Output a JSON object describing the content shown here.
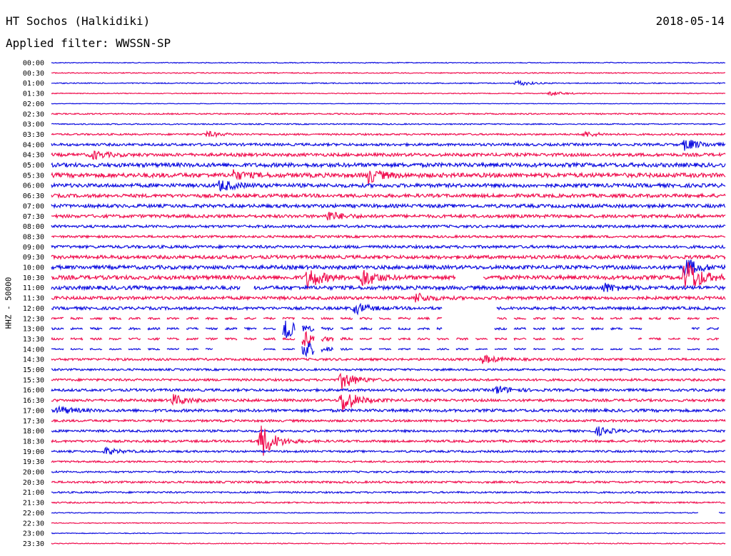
{
  "header": {
    "station": "HT Sochos (Halkidiki)",
    "filter": "Applied filter: WWSSN-SP",
    "date": "2018-05-14"
  },
  "colors": {
    "trace_a": "#1010e0",
    "trace_b": "#f01050",
    "background": "#ffffff"
  },
  "chart_data": {
    "type": "line",
    "title": "HT Sochos (Halkidiki)",
    "subtitle": "Applied filter: WWSSN-SP",
    "date": "2018-05-14",
    "ylabel": "HHZ - 50000",
    "xlabel": "",
    "grid": false,
    "legend": "none",
    "series_colors": [
      "#1010e0",
      "#f01050"
    ],
    "row_labels": [
      "00:00",
      "00:30",
      "01:00",
      "01:30",
      "02:00",
      "02:30",
      "03:00",
      "03:30",
      "04:00",
      "04:30",
      "05:00",
      "05:30",
      "06:00",
      "06:30",
      "07:00",
      "07:30",
      "08:00",
      "08:30",
      "09:00",
      "09:30",
      "10:00",
      "10:30",
      "11:00",
      "11:30",
      "12:00",
      "12:30",
      "13:00",
      "13:30",
      "14:00",
      "14:30",
      "15:00",
      "15:30",
      "16:00",
      "16:30",
      "17:00",
      "17:30",
      "18:00",
      "18:30",
      "19:00",
      "19:30",
      "20:00",
      "20:30",
      "21:00",
      "21:30",
      "22:00",
      "22:30",
      "23:00",
      "23:30"
    ],
    "noise_level": [
      0.6,
      0.7,
      0.7,
      0.6,
      0.4,
      0.9,
      0.8,
      1.2,
      1.8,
      2.2,
      2.8,
      3.0,
      2.6,
      2.4,
      2.4,
      2.2,
      1.8,
      1.6,
      2.0,
      2.4,
      2.6,
      2.8,
      2.6,
      2.2,
      2.0,
      1.4,
      1.4,
      1.4,
      1.0,
      1.6,
      1.4,
      1.6,
      1.8,
      1.8,
      2.0,
      1.6,
      1.6,
      1.6,
      1.4,
      1.2,
      1.2,
      1.4,
      1.2,
      1.0,
      0.6,
      0.6,
      0.6,
      0.6
    ],
    "events": [
      {
        "row": 2,
        "t": 0.69,
        "amp": 4
      },
      {
        "row": 3,
        "t": 0.74,
        "amp": 3
      },
      {
        "row": 7,
        "t": 0.23,
        "amp": 4
      },
      {
        "row": 7,
        "t": 0.79,
        "amp": 4
      },
      {
        "row": 8,
        "t": 0.94,
        "amp": 9
      },
      {
        "row": 9,
        "t": 0.06,
        "amp": 6
      },
      {
        "row": 11,
        "t": 0.27,
        "amp": 6
      },
      {
        "row": 11,
        "t": 0.47,
        "amp": 10
      },
      {
        "row": 12,
        "t": 0.25,
        "amp": 8
      },
      {
        "row": 15,
        "t": 0.41,
        "amp": 7
      },
      {
        "row": 20,
        "t": 0.94,
        "amp": 14
      },
      {
        "row": 21,
        "t": 0.38,
        "amp": 16
      },
      {
        "row": 21,
        "t": 0.46,
        "amp": 14
      },
      {
        "row": 21,
        "t": 0.94,
        "amp": 30
      },
      {
        "row": 22,
        "t": 0.82,
        "amp": 6
      },
      {
        "row": 23,
        "t": 0.54,
        "amp": 7
      },
      {
        "row": 24,
        "t": 0.45,
        "amp": 8
      },
      {
        "row": 26,
        "t": 0.34,
        "amp": 28
      },
      {
        "row": 27,
        "t": 0.37,
        "amp": 14
      },
      {
        "row": 28,
        "t": 0.37,
        "amp": 18
      },
      {
        "row": 29,
        "t": 0.64,
        "amp": 6
      },
      {
        "row": 31,
        "t": 0.43,
        "amp": 14
      },
      {
        "row": 32,
        "t": 0.66,
        "amp": 6
      },
      {
        "row": 33,
        "t": 0.18,
        "amp": 8
      },
      {
        "row": 33,
        "t": 0.43,
        "amp": 20
      },
      {
        "row": 34,
        "t": 0.01,
        "amp": 6
      },
      {
        "row": 36,
        "t": 0.81,
        "amp": 6
      },
      {
        "row": 37,
        "t": 0.31,
        "amp": 26
      },
      {
        "row": 38,
        "t": 0.08,
        "amp": 5
      }
    ],
    "gaps": [
      {
        "row": 21,
        "from": 0.6,
        "to": 0.64
      },
      {
        "row": 22,
        "from": 0.28,
        "to": 0.3
      },
      {
        "row": 24,
        "from": 0.58,
        "to": 0.66
      },
      {
        "row": 25,
        "from": 0.58,
        "to": 0.66
      },
      {
        "row": 26,
        "from": 0.58,
        "to": 0.65
      },
      {
        "row": 26,
        "from": 0.88,
        "to": 0.95
      },
      {
        "row": 27,
        "from": 0.79,
        "to": 0.87
      },
      {
        "row": 28,
        "from": 0.24,
        "to": 0.31
      },
      {
        "row": 44,
        "from": 0.96,
        "to": 0.99
      }
    ],
    "dashed_rows": [
      25,
      26,
      27,
      28
    ]
  }
}
